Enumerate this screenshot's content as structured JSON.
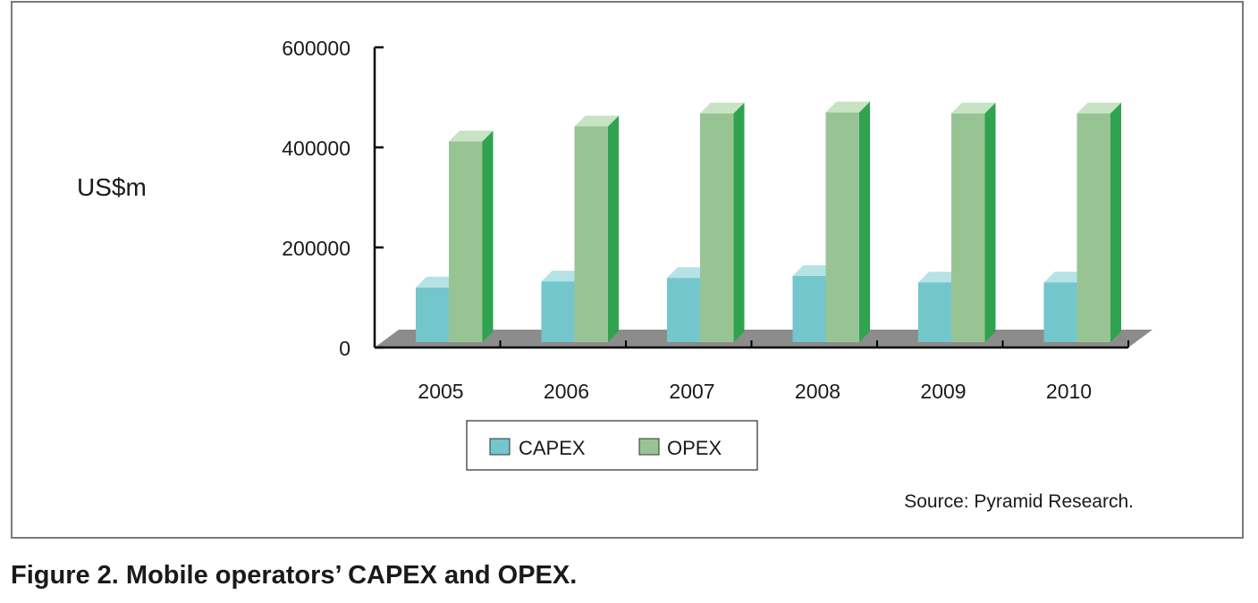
{
  "caption": "Figure 2. Mobile operators’ CAPEX and OPEX.",
  "chart_data": {
    "type": "bar",
    "categories": [
      "2005",
      "2006",
      "2007",
      "2008",
      "2009",
      "2010"
    ],
    "series": [
      {
        "name": "CAPEX",
        "values": [
          120000,
          132000,
          139000,
          143000,
          130000,
          130000
        ]
      },
      {
        "name": "OPEX",
        "values": [
          412000,
          442000,
          468000,
          470000,
          468000,
          468000
        ]
      }
    ],
    "ylabel": "US$m",
    "ylim": [
      0,
      600000
    ],
    "yticks": [
      0,
      200000,
      400000,
      600000
    ],
    "ytick_labels": [
      "0",
      "200000",
      "400000",
      "600000"
    ],
    "legend_position": "bottom",
    "source": "Source: Pyramid Research.",
    "style": "3d-column",
    "colors": {
      "CAPEX": {
        "front": "#73c6cc",
        "top": "#b5e2e5",
        "side": "#4aa7ae"
      },
      "OPEX": {
        "front": "#98c494",
        "top": "#c8e3c4",
        "side": "#2fa34f"
      },
      "floor": "#8c8c8c",
      "axis": "#000000"
    }
  }
}
